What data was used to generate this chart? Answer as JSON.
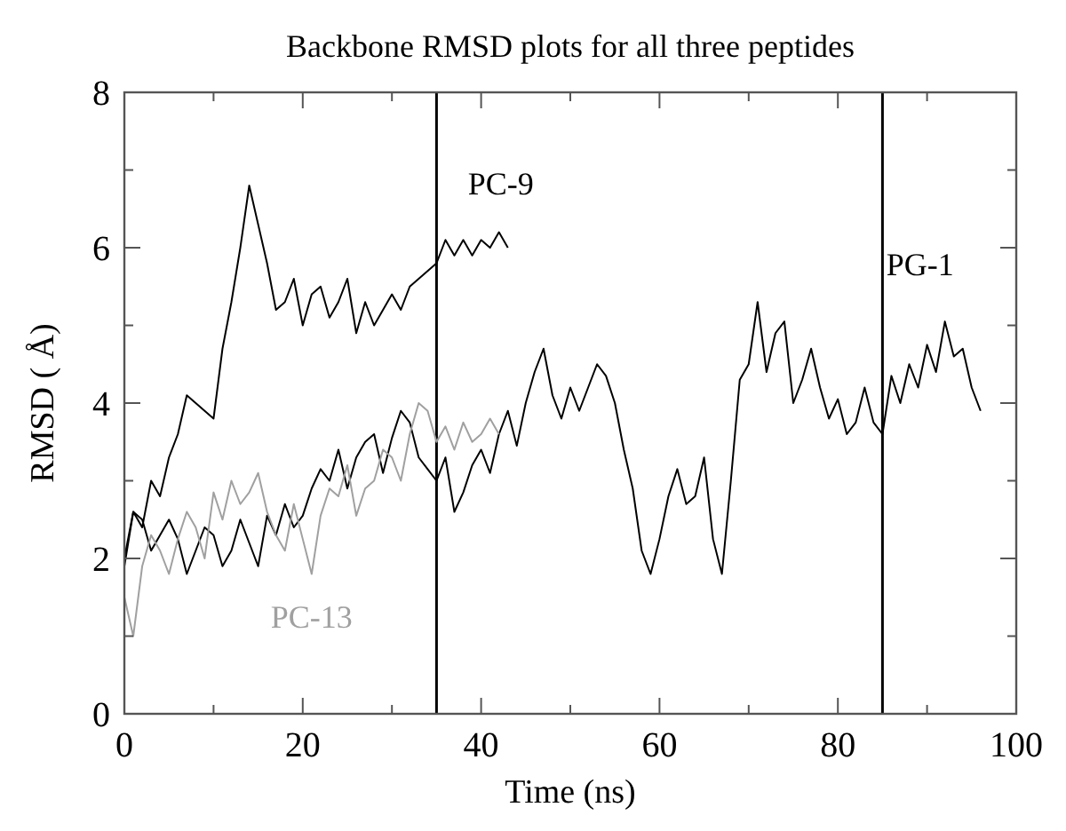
{
  "chart_data": {
    "type": "line",
    "title": "Backbone RMSD plots for all three peptides",
    "xlabel": "Time (ns)",
    "ylabel": "RMSD ( Å)",
    "xlim": [
      0,
      100
    ],
    "ylim": [
      0,
      8
    ],
    "xticks": [
      0,
      {
        "value": 10,
        "label": null
      },
      20,
      {
        "value": 30,
        "label": null
      },
      40,
      {
        "value": 50,
        "label": null
      },
      60,
      {
        "value": 70,
        "label": null
      },
      80,
      {
        "value": 90,
        "label": null
      },
      100
    ],
    "yticks": [
      0,
      {
        "value": 1,
        "label": null
      },
      2,
      {
        "value": 3,
        "label": null
      },
      4,
      {
        "value": 5,
        "label": null
      },
      6,
      {
        "value": 7,
        "label": null
      },
      8
    ],
    "grid": false,
    "marker": "none",
    "line_style": "solid",
    "series": [
      {
        "name": "PG-1",
        "color": "#000000",
        "x": [
          0,
          1,
          2,
          3,
          4,
          5,
          6,
          7,
          8,
          9,
          10,
          11,
          12,
          13,
          14,
          15,
          16,
          17,
          18,
          19,
          20,
          21,
          22,
          23,
          24,
          25,
          26,
          27,
          28,
          29,
          30,
          31,
          32,
          33,
          34,
          35,
          36,
          37,
          38,
          39,
          40,
          41,
          42,
          43,
          44,
          45,
          46,
          47,
          48,
          49,
          50,
          51,
          52,
          53,
          54,
          55,
          56,
          57,
          58,
          59,
          60,
          61,
          62,
          63,
          64,
          65,
          66,
          67,
          68,
          69,
          70,
          71,
          72,
          73,
          74,
          75,
          76,
          77,
          78,
          79,
          80,
          81,
          82,
          83,
          84,
          85,
          86,
          87,
          88,
          89,
          90,
          91,
          92,
          93,
          94,
          95,
          96
        ],
        "values": [
          1.9,
          2.6,
          2.5,
          2.1,
          2.3,
          2.5,
          2.25,
          1.8,
          2.1,
          2.4,
          2.3,
          1.9,
          2.1,
          2.5,
          2.2,
          1.9,
          2.55,
          2.3,
          2.7,
          2.4,
          2.55,
          2.9,
          3.15,
          3.0,
          3.4,
          2.9,
          3.3,
          3.5,
          3.6,
          3.1,
          3.55,
          3.9,
          3.75,
          3.3,
          3.15,
          3.0,
          3.3,
          2.6,
          2.85,
          3.2,
          3.4,
          3.1,
          3.6,
          3.9,
          3.45,
          4.0,
          4.4,
          4.7,
          4.1,
          3.8,
          4.2,
          3.9,
          4.2,
          4.5,
          4.35,
          4.0,
          3.4,
          2.9,
          2.1,
          1.8,
          2.25,
          2.8,
          3.15,
          2.7,
          2.8,
          3.3,
          2.25,
          1.8,
          3.0,
          4.3,
          4.5,
          5.3,
          4.4,
          4.9,
          5.05,
          4.0,
          4.3,
          4.7,
          4.2,
          3.8,
          4.05,
          3.6,
          3.75,
          4.2,
          3.75,
          3.6,
          4.35,
          4.0,
          4.5,
          4.2,
          4.75,
          4.4,
          5.05,
          4.6,
          4.7,
          4.2,
          3.9
        ]
      },
      {
        "name": "PC-9",
        "color": "#000000",
        "x": [
          0,
          1,
          2,
          3,
          4,
          5,
          6,
          7,
          8,
          9,
          10,
          11,
          12,
          13,
          14,
          15,
          16,
          17,
          18,
          19,
          20,
          21,
          22,
          23,
          24,
          25,
          26,
          27,
          28,
          29,
          30,
          31,
          32,
          33,
          34,
          35,
          36,
          37,
          38,
          39,
          40,
          41,
          42,
          43
        ],
        "values": [
          2.0,
          2.6,
          2.4,
          3.0,
          2.8,
          3.3,
          3.6,
          4.1,
          4.0,
          3.9,
          3.8,
          4.7,
          5.3,
          6.0,
          6.8,
          6.3,
          5.8,
          5.2,
          5.3,
          5.6,
          5.0,
          5.4,
          5.5,
          5.1,
          5.3,
          5.6,
          4.9,
          5.3,
          5.0,
          5.2,
          5.4,
          5.2,
          5.5,
          5.6,
          5.7,
          5.8,
          6.1,
          5.9,
          6.1,
          5.9,
          6.1,
          6.0,
          6.2,
          6.0
        ]
      },
      {
        "name": "PC-13",
        "color": "#a0a0a0",
        "x": [
          0,
          1,
          2,
          3,
          4,
          5,
          6,
          7,
          8,
          9,
          10,
          11,
          12,
          13,
          14,
          15,
          16,
          17,
          18,
          19,
          20,
          21,
          22,
          23,
          24,
          25,
          26,
          27,
          28,
          29,
          30,
          31,
          32,
          33,
          34,
          35,
          36,
          37,
          38,
          39,
          40,
          41,
          42
        ],
        "values": [
          1.5,
          1.0,
          1.9,
          2.3,
          2.1,
          1.8,
          2.25,
          2.6,
          2.4,
          2.0,
          2.85,
          2.5,
          3.0,
          2.7,
          2.85,
          3.1,
          2.6,
          2.3,
          2.1,
          2.7,
          2.25,
          1.8,
          2.55,
          2.9,
          2.8,
          3.2,
          2.55,
          2.9,
          3.0,
          3.4,
          3.3,
          3.0,
          3.6,
          4.0,
          3.9,
          3.5,
          3.7,
          3.4,
          3.75,
          3.5,
          3.6,
          3.8,
          3.6
        ]
      }
    ],
    "ref_lines": [
      {
        "axis": "x",
        "value": 35,
        "color": "#000000"
      },
      {
        "axis": "x",
        "value": 85,
        "color": "#000000"
      }
    ]
  }
}
